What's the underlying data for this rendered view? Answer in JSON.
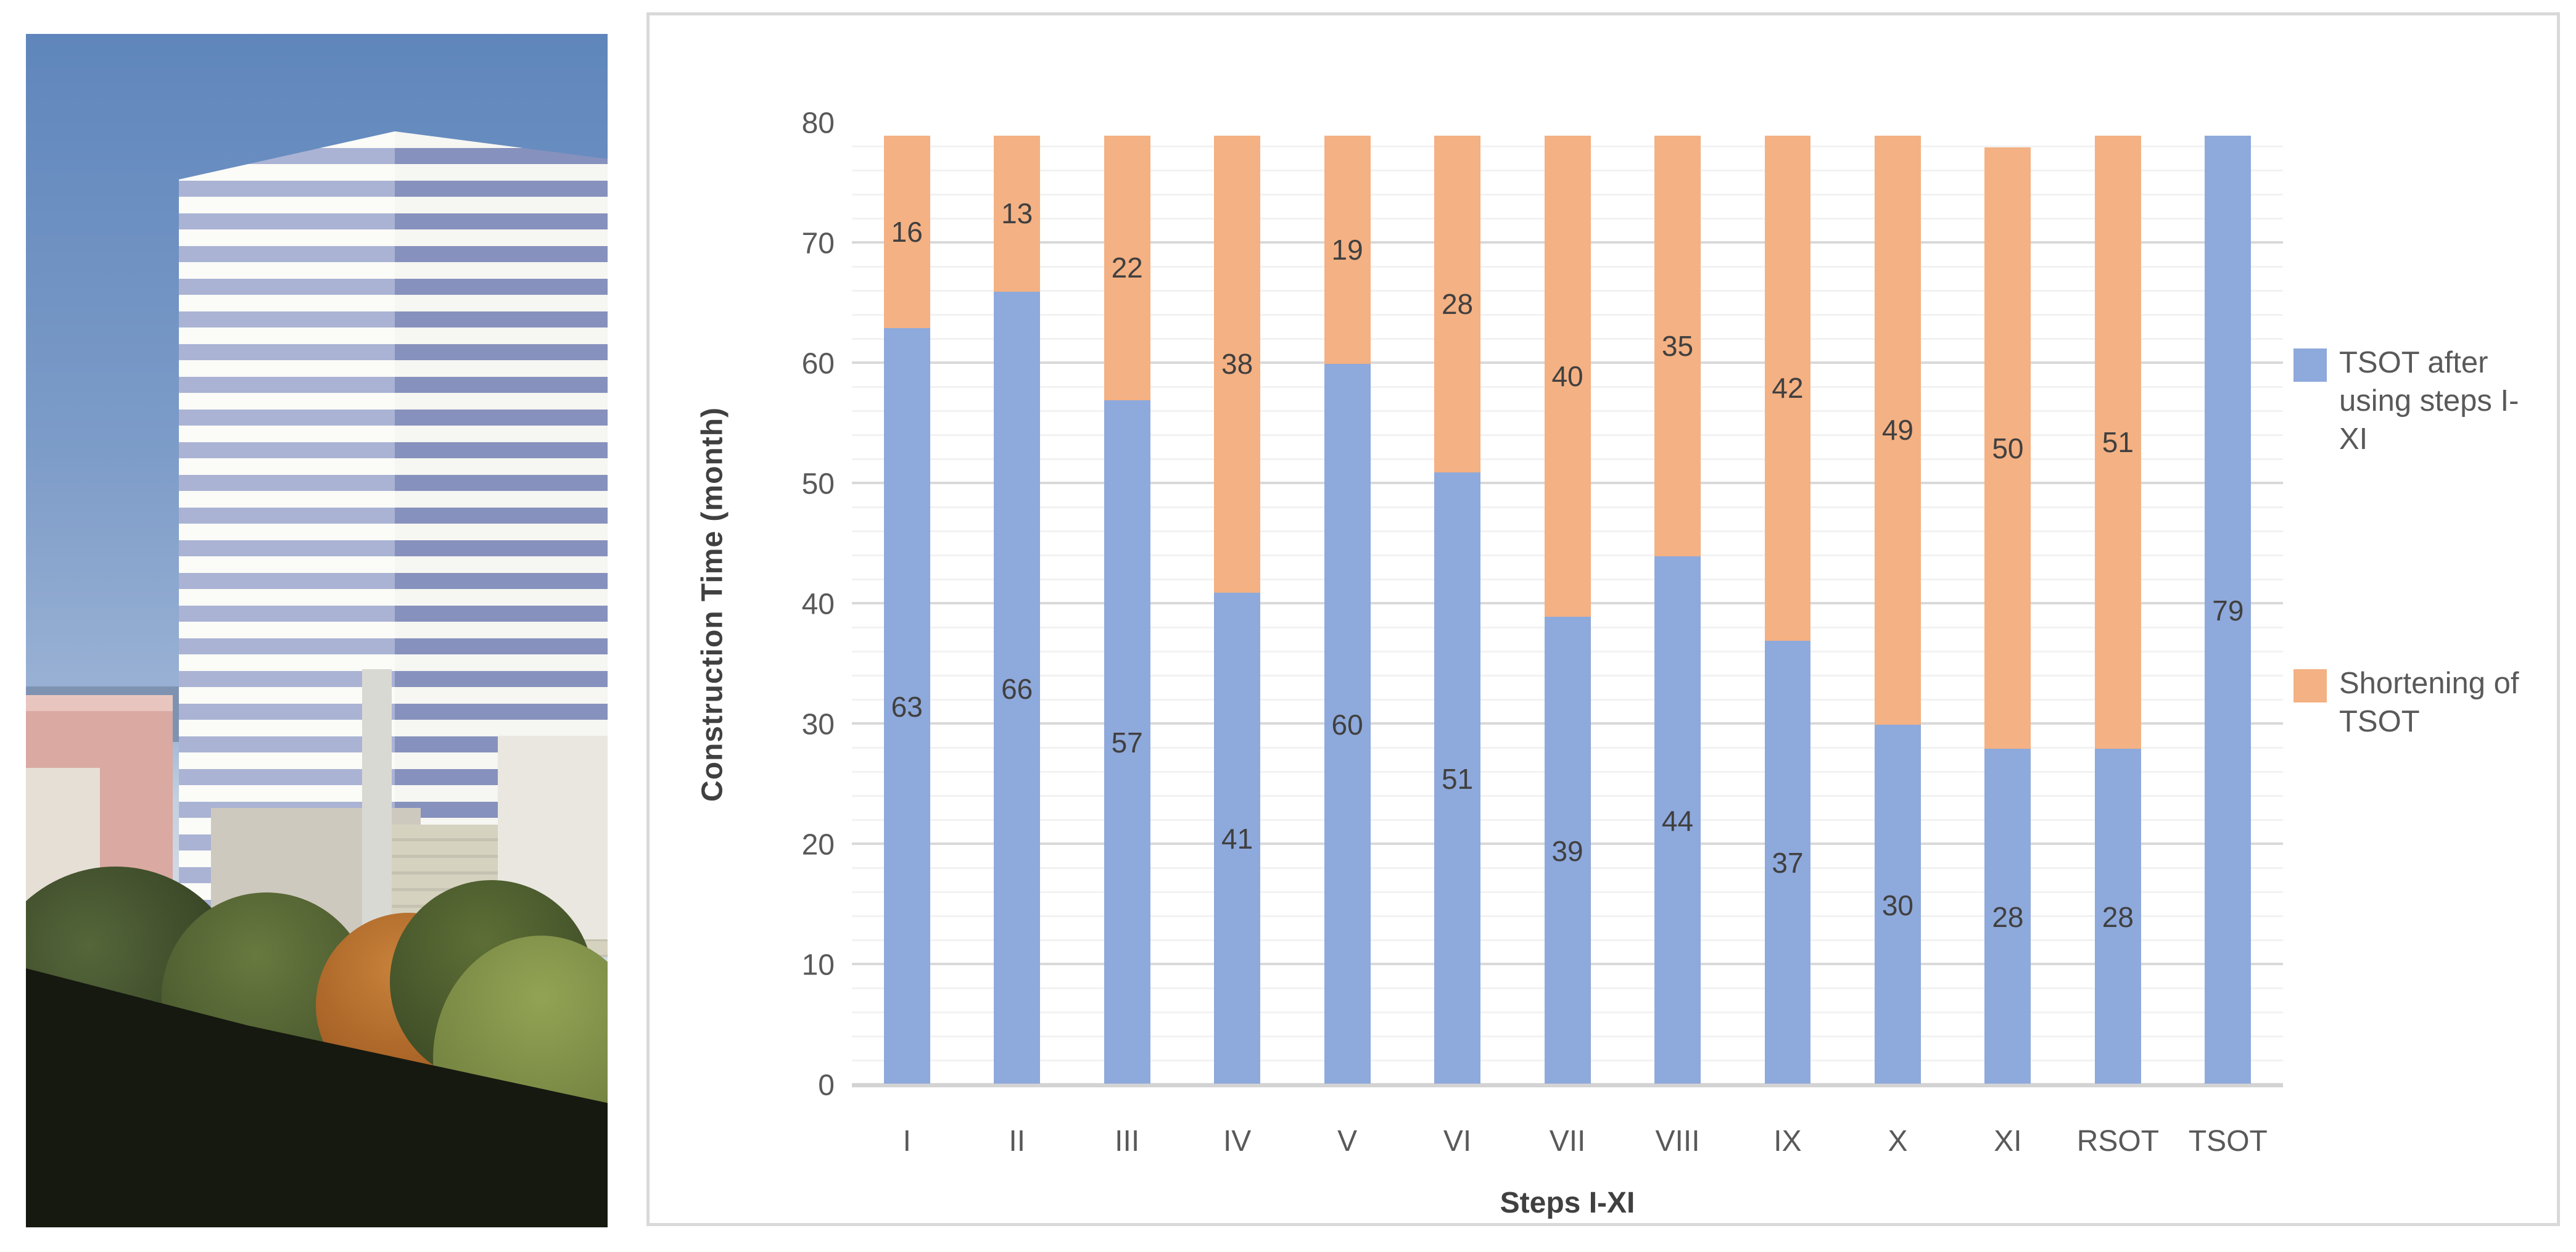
{
  "chart_data": {
    "type": "bar",
    "stacked": true,
    "title": "",
    "categories": [
      "I",
      "II",
      "III",
      "IV",
      "V",
      "VI",
      "VII",
      "VIII",
      "IX",
      "X",
      "XI",
      "RSOT",
      "TSOT"
    ],
    "series": [
      {
        "name": "TSOT after using steps I-XI",
        "color": "#8EA9DB",
        "values": [
          63,
          66,
          57,
          41,
          60,
          51,
          39,
          44,
          37,
          30,
          28,
          28,
          79
        ]
      },
      {
        "name": "Shortening of TSOT",
        "color": "#F4B183",
        "values": [
          16,
          13,
          22,
          38,
          19,
          28,
          40,
          35,
          42,
          49,
          50,
          51,
          0
        ]
      }
    ],
    "xlabel": "Steps I-XI",
    "ylabel": "Construction Time (month)",
    "ylim": [
      0,
      80
    ],
    "yticks": [
      0,
      10,
      20,
      30,
      40,
      50,
      60,
      70,
      80
    ],
    "minor_grid_step": 2,
    "major_grid_step": 10,
    "grid": true,
    "legend_position": "right",
    "data_labels": "center",
    "label_color": "#404040",
    "axis_text_color": "#595959",
    "gridline_major_color": "#D9D9D9",
    "gridline_minor_color": "#F2F2F2"
  }
}
